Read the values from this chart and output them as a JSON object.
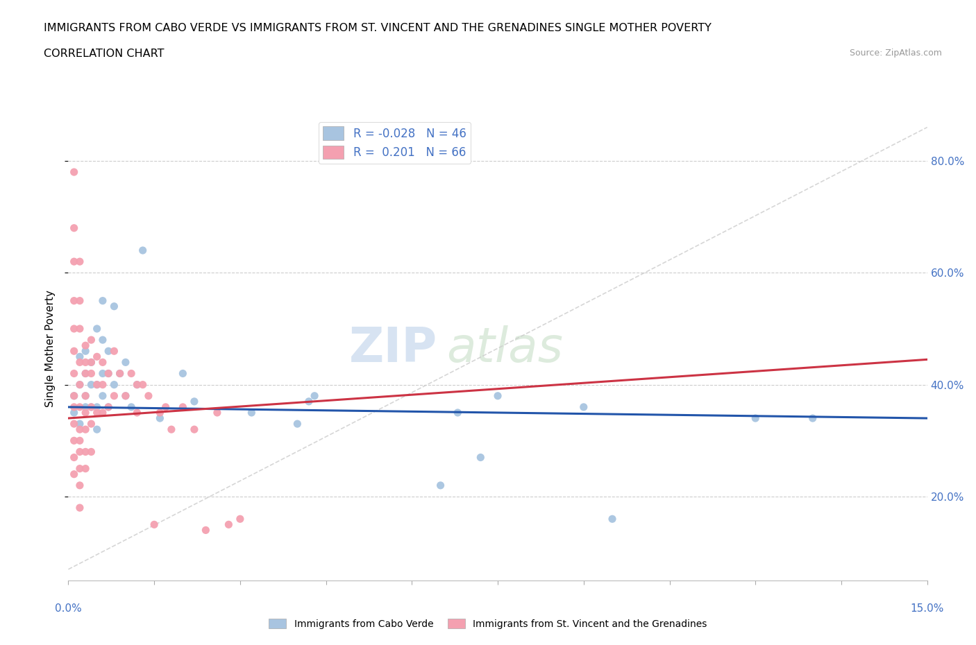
{
  "title_line1": "IMMIGRANTS FROM CABO VERDE VS IMMIGRANTS FROM ST. VINCENT AND THE GRENADINES SINGLE MOTHER POVERTY",
  "title_line2": "CORRELATION CHART",
  "source": "Source: ZipAtlas.com",
  "ylabel": "Single Mother Poverty",
  "y_tick_labels": [
    "20.0%",
    "40.0%",
    "60.0%",
    "80.0%"
  ],
  "y_tick_values": [
    0.2,
    0.4,
    0.6,
    0.8
  ],
  "x_min": 0.0,
  "x_max": 0.15,
  "y_min": 0.05,
  "y_max": 0.88,
  "cabo_verde_color": "#a8c4e0",
  "st_vincent_color": "#f4a0b0",
  "cabo_verde_trend_color": "#2255aa",
  "st_vincent_trend_color": "#cc3344",
  "diag_line_color": "#cccccc",
  "legend_cabo_r": "R = -0.028",
  "legend_cabo_n": "N = 46",
  "legend_vincent_r": "R =  0.201",
  "legend_vincent_n": "N = 66",
  "watermark_zip": "ZIP",
  "watermark_atlas": "atlas",
  "cabo_verde_x": [
    0.001,
    0.001,
    0.002,
    0.002,
    0.002,
    0.003,
    0.003,
    0.003,
    0.003,
    0.004,
    0.004,
    0.004,
    0.005,
    0.005,
    0.005,
    0.005,
    0.006,
    0.006,
    0.006,
    0.006,
    0.007,
    0.007,
    0.007,
    0.008,
    0.008,
    0.009,
    0.01,
    0.01,
    0.011,
    0.012,
    0.013,
    0.016,
    0.02,
    0.022,
    0.032,
    0.04,
    0.042,
    0.043,
    0.065,
    0.068,
    0.072,
    0.075,
    0.09,
    0.095,
    0.12,
    0.13
  ],
  "cabo_verde_y": [
    0.35,
    0.38,
    0.33,
    0.4,
    0.45,
    0.36,
    0.38,
    0.42,
    0.46,
    0.36,
    0.4,
    0.44,
    0.32,
    0.36,
    0.4,
    0.5,
    0.38,
    0.42,
    0.48,
    0.55,
    0.36,
    0.42,
    0.46,
    0.4,
    0.54,
    0.42,
    0.38,
    0.44,
    0.36,
    0.4,
    0.64,
    0.34,
    0.42,
    0.37,
    0.35,
    0.33,
    0.37,
    0.38,
    0.22,
    0.35,
    0.27,
    0.38,
    0.36,
    0.16,
    0.34,
    0.34
  ],
  "st_vincent_x": [
    0.001,
    0.001,
    0.001,
    0.001,
    0.001,
    0.001,
    0.001,
    0.001,
    0.001,
    0.001,
    0.001,
    0.001,
    0.001,
    0.002,
    0.002,
    0.002,
    0.002,
    0.002,
    0.002,
    0.002,
    0.002,
    0.002,
    0.002,
    0.002,
    0.002,
    0.003,
    0.003,
    0.003,
    0.003,
    0.003,
    0.003,
    0.003,
    0.003,
    0.004,
    0.004,
    0.004,
    0.004,
    0.004,
    0.004,
    0.005,
    0.005,
    0.005,
    0.006,
    0.006,
    0.006,
    0.007,
    0.007,
    0.008,
    0.008,
    0.009,
    0.01,
    0.011,
    0.012,
    0.012,
    0.013,
    0.014,
    0.015,
    0.016,
    0.017,
    0.018,
    0.02,
    0.022,
    0.024,
    0.026,
    0.028,
    0.03
  ],
  "st_vincent_y": [
    0.78,
    0.68,
    0.62,
    0.55,
    0.5,
    0.46,
    0.42,
    0.38,
    0.36,
    0.33,
    0.3,
    0.27,
    0.24,
    0.62,
    0.55,
    0.5,
    0.44,
    0.4,
    0.36,
    0.32,
    0.3,
    0.28,
    0.25,
    0.22,
    0.18,
    0.47,
    0.44,
    0.42,
    0.38,
    0.35,
    0.32,
    0.28,
    0.25,
    0.48,
    0.44,
    0.42,
    0.36,
    0.33,
    0.28,
    0.45,
    0.4,
    0.35,
    0.44,
    0.4,
    0.35,
    0.42,
    0.36,
    0.46,
    0.38,
    0.42,
    0.38,
    0.42,
    0.4,
    0.35,
    0.4,
    0.38,
    0.15,
    0.35,
    0.36,
    0.32,
    0.36,
    0.32,
    0.14,
    0.35,
    0.15,
    0.16
  ]
}
